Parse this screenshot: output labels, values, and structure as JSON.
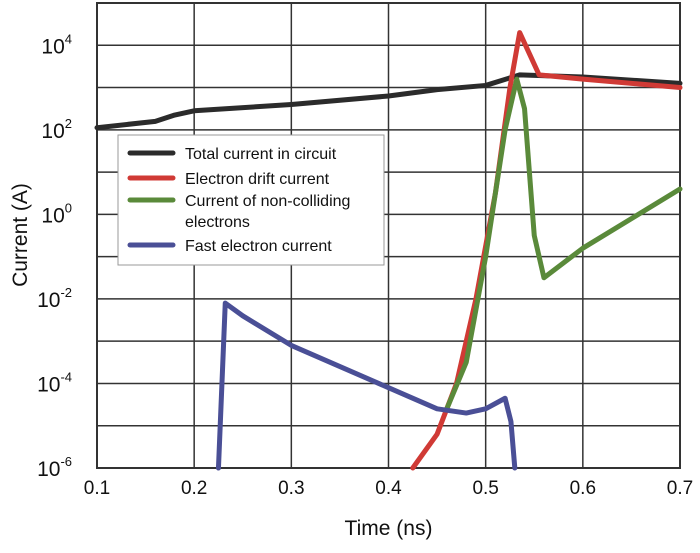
{
  "chart_data": {
    "type": "line",
    "title": "",
    "xlabel": "Time (ns)",
    "ylabel": "Current (A)",
    "xlim": [
      0.1,
      0.7
    ],
    "ylim_log10": [
      -6,
      5
    ],
    "yscale": "log",
    "grid": true,
    "x_ticks": [
      "0.1",
      "0.2",
      "0.3",
      "0.4",
      "0.5",
      "0.6",
      "0.7"
    ],
    "y_ticks": [
      {
        "base": "10",
        "exp": "4"
      },
      {
        "base": "10",
        "exp": "2"
      },
      {
        "base": "10",
        "exp": "0"
      },
      {
        "base": "10",
        "exp": "-2"
      },
      {
        "base": "10",
        "exp": "-4"
      },
      {
        "base": "10",
        "exp": "-6"
      }
    ],
    "legend_placement": "upper-left",
    "series": [
      {
        "name": "Total current in circuit",
        "color": "#2b2b2b",
        "x": [
          0.1,
          0.16,
          0.18,
          0.2,
          0.3,
          0.4,
          0.45,
          0.5,
          0.535,
          0.6,
          0.7
        ],
        "log10_y": [
          2.05,
          2.2,
          2.35,
          2.45,
          2.6,
          2.8,
          2.95,
          3.05,
          3.3,
          3.25,
          3.1
        ]
      },
      {
        "name": "Electron drift current",
        "color": "#d03a35",
        "x": [
          0.425,
          0.45,
          0.47,
          0.49,
          0.51,
          0.525,
          0.535,
          0.545,
          0.555,
          0.6,
          0.7
        ],
        "log10_y": [
          -6,
          -5.2,
          -4,
          -2,
          0.5,
          3,
          4.3,
          3.8,
          3.3,
          3.2,
          3.0
        ]
      },
      {
        "name": "Current of non-colliding electrons",
        "color": "#5a8a3a",
        "x": [
          0.46,
          0.48,
          0.5,
          0.52,
          0.532,
          0.54,
          0.55,
          0.56,
          0.6,
          0.65,
          0.7
        ],
        "log10_y": [
          -4.6,
          -3.5,
          -1,
          2,
          3.2,
          2.5,
          -0.5,
          -1.5,
          -0.8,
          -0.1,
          0.6
        ]
      },
      {
        "name": "Fast electron current",
        "color": "#4a4f96",
        "x": [
          0.225,
          0.232,
          0.25,
          0.3,
          0.4,
          0.45,
          0.48,
          0.5,
          0.52,
          0.526,
          0.53
        ],
        "log10_y": [
          -6,
          -2.1,
          -2.4,
          -3.1,
          -4.1,
          -4.6,
          -4.7,
          -4.6,
          -4.35,
          -4.9,
          -6
        ]
      }
    ],
    "legend_labels": [
      "Total current in circuit",
      "Electron drift current",
      "Current of non-colliding",
      "electrons",
      "Fast electron current"
    ]
  }
}
